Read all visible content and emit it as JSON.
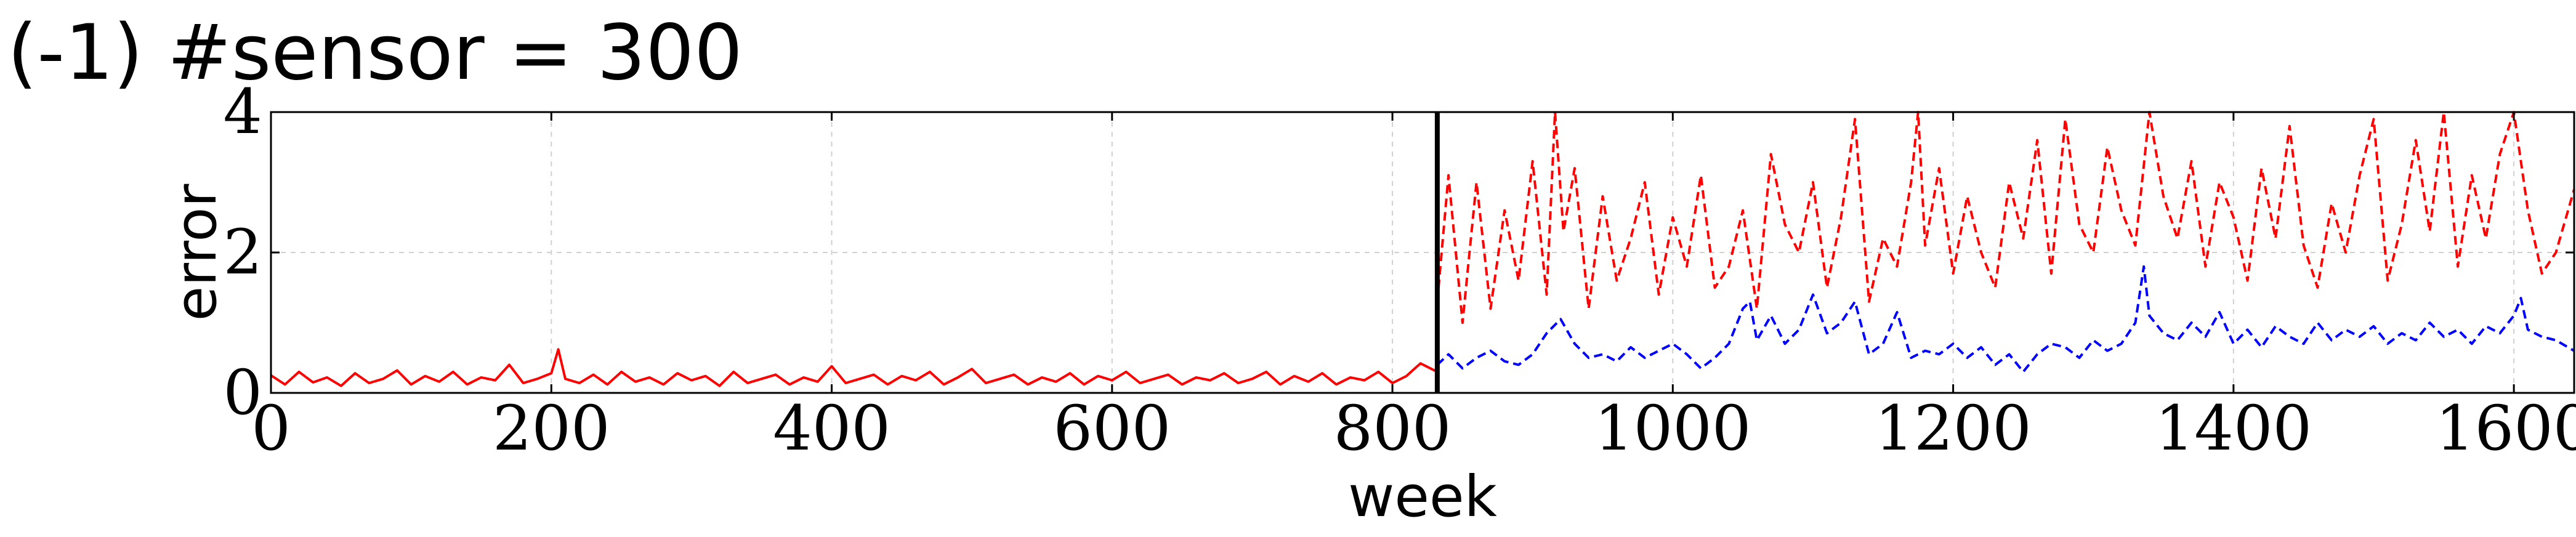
{
  "chart_data": {
    "type": "line",
    "title": "(-1) #sensor = 300",
    "xlabel": "week",
    "ylabel": "error",
    "xlim": [
      0,
      1643
    ],
    "ylim": [
      0,
      4
    ],
    "xticks": [
      0,
      200,
      400,
      600,
      800,
      1000,
      1200,
      1400,
      1600
    ],
    "yticks": [
      0,
      2,
      4
    ],
    "grid": true,
    "legend": "none",
    "split_week": 832,
    "series": [
      {
        "style": "solid",
        "color": "#ff0000",
        "x": [
          0,
          10,
          20,
          30,
          40,
          50,
          60,
          70,
          80,
          90,
          100,
          110,
          120,
          130,
          140,
          150,
          160,
          170,
          180,
          190,
          200,
          205,
          210,
          220,
          230,
          240,
          250,
          260,
          270,
          280,
          290,
          300,
          310,
          320,
          330,
          340,
          350,
          360,
          370,
          380,
          390,
          400,
          410,
          420,
          430,
          440,
          450,
          460,
          470,
          480,
          490,
          500,
          510,
          520,
          530,
          540,
          550,
          560,
          570,
          580,
          590,
          600,
          610,
          620,
          630,
          640,
          650,
          660,
          670,
          680,
          690,
          700,
          710,
          720,
          730,
          740,
          750,
          760,
          770,
          780,
          790,
          800,
          810,
          820,
          832
        ],
        "values": [
          0.25,
          0.12,
          0.3,
          0.15,
          0.22,
          0.1,
          0.28,
          0.14,
          0.2,
          0.32,
          0.12,
          0.24,
          0.16,
          0.3,
          0.12,
          0.22,
          0.18,
          0.4,
          0.14,
          0.2,
          0.28,
          0.62,
          0.2,
          0.14,
          0.26,
          0.12,
          0.3,
          0.16,
          0.22,
          0.12,
          0.28,
          0.18,
          0.24,
          0.1,
          0.3,
          0.14,
          0.2,
          0.26,
          0.12,
          0.22,
          0.16,
          0.38,
          0.14,
          0.2,
          0.26,
          0.12,
          0.24,
          0.18,
          0.3,
          0.12,
          0.22,
          0.34,
          0.14,
          0.2,
          0.26,
          0.12,
          0.22,
          0.16,
          0.28,
          0.12,
          0.24,
          0.18,
          0.3,
          0.14,
          0.2,
          0.26,
          0.12,
          0.22,
          0.18,
          0.28,
          0.14,
          0.2,
          0.3,
          0.12,
          0.24,
          0.16,
          0.28,
          0.12,
          0.22,
          0.18,
          0.3,
          0.14,
          0.24,
          0.42,
          0.3
        ]
      },
      {
        "style": "dashed",
        "color": "#ff0000",
        "x": [
          832,
          840,
          850,
          860,
          870,
          880,
          890,
          900,
          910,
          916,
          922,
          930,
          940,
          950,
          960,
          970,
          980,
          990,
          1000,
          1010,
          1020,
          1030,
          1040,
          1050,
          1060,
          1070,
          1080,
          1090,
          1100,
          1110,
          1120,
          1130,
          1140,
          1150,
          1160,
          1170,
          1175,
          1180,
          1190,
          1200,
          1210,
          1220,
          1230,
          1240,
          1250,
          1260,
          1270,
          1280,
          1290,
          1300,
          1310,
          1320,
          1330,
          1340,
          1350,
          1360,
          1370,
          1380,
          1390,
          1400,
          1410,
          1420,
          1430,
          1440,
          1450,
          1460,
          1470,
          1480,
          1490,
          1500,
          1510,
          1520,
          1530,
          1540,
          1550,
          1560,
          1570,
          1580,
          1590,
          1600,
          1610,
          1620,
          1630,
          1643
        ],
        "values": [
          1.3,
          3.1,
          1.0,
          3.0,
          1.2,
          2.6,
          1.6,
          3.3,
          1.4,
          4.0,
          2.3,
          3.2,
          1.2,
          2.8,
          1.6,
          2.2,
          3.0,
          1.4,
          2.5,
          1.8,
          3.1,
          1.5,
          1.8,
          2.6,
          1.2,
          3.4,
          2.4,
          2.0,
          3.0,
          1.5,
          2.5,
          3.9,
          1.3,
          2.2,
          1.8,
          3.0,
          4.0,
          2.1,
          3.2,
          1.7,
          2.8,
          2.0,
          1.5,
          3.0,
          2.2,
          3.6,
          1.7,
          3.9,
          2.4,
          2.0,
          3.5,
          2.6,
          2.1,
          4.0,
          2.8,
          2.2,
          3.3,
          1.8,
          3.0,
          2.5,
          1.6,
          3.2,
          2.2,
          3.8,
          2.1,
          1.5,
          2.7,
          2.0,
          3.1,
          3.9,
          1.6,
          2.4,
          3.6,
          2.3,
          4.0,
          1.8,
          3.1,
          2.2,
          3.4,
          4.0,
          2.6,
          1.7,
          2.0,
          2.9
        ]
      },
      {
        "style": "dashed",
        "color": "#0000ff",
        "x": [
          832,
          840,
          850,
          860,
          870,
          880,
          890,
          900,
          910,
          920,
          930,
          940,
          950,
          960,
          970,
          980,
          990,
          1000,
          1010,
          1020,
          1030,
          1040,
          1050,
          1055,
          1060,
          1070,
          1080,
          1090,
          1100,
          1110,
          1120,
          1130,
          1140,
          1150,
          1160,
          1170,
          1180,
          1190,
          1200,
          1210,
          1220,
          1230,
          1240,
          1250,
          1260,
          1270,
          1280,
          1290,
          1300,
          1310,
          1320,
          1330,
          1336,
          1340,
          1350,
          1360,
          1370,
          1380,
          1390,
          1400,
          1410,
          1420,
          1430,
          1440,
          1450,
          1460,
          1470,
          1480,
          1490,
          1500,
          1510,
          1520,
          1530,
          1540,
          1550,
          1560,
          1570,
          1580,
          1590,
          1600,
          1605,
          1610,
          1620,
          1630,
          1643
        ],
        "values": [
          0.4,
          0.55,
          0.35,
          0.5,
          0.6,
          0.45,
          0.4,
          0.55,
          0.85,
          1.05,
          0.7,
          0.5,
          0.55,
          0.45,
          0.65,
          0.5,
          0.6,
          0.7,
          0.55,
          0.35,
          0.5,
          0.7,
          1.2,
          1.3,
          0.75,
          1.1,
          0.7,
          0.9,
          1.4,
          0.85,
          1.0,
          1.3,
          0.55,
          0.7,
          1.15,
          0.5,
          0.6,
          0.55,
          0.7,
          0.5,
          0.65,
          0.4,
          0.55,
          0.3,
          0.55,
          0.7,
          0.65,
          0.5,
          0.75,
          0.6,
          0.7,
          1.0,
          1.8,
          1.1,
          0.85,
          0.75,
          1.0,
          0.8,
          1.15,
          0.7,
          0.9,
          0.65,
          0.95,
          0.8,
          0.7,
          1.0,
          0.75,
          0.9,
          0.8,
          0.95,
          0.7,
          0.85,
          0.75,
          1.0,
          0.8,
          0.9,
          0.7,
          0.95,
          0.85,
          1.1,
          1.35,
          0.9,
          0.8,
          0.75,
          0.6
        ]
      }
    ]
  }
}
